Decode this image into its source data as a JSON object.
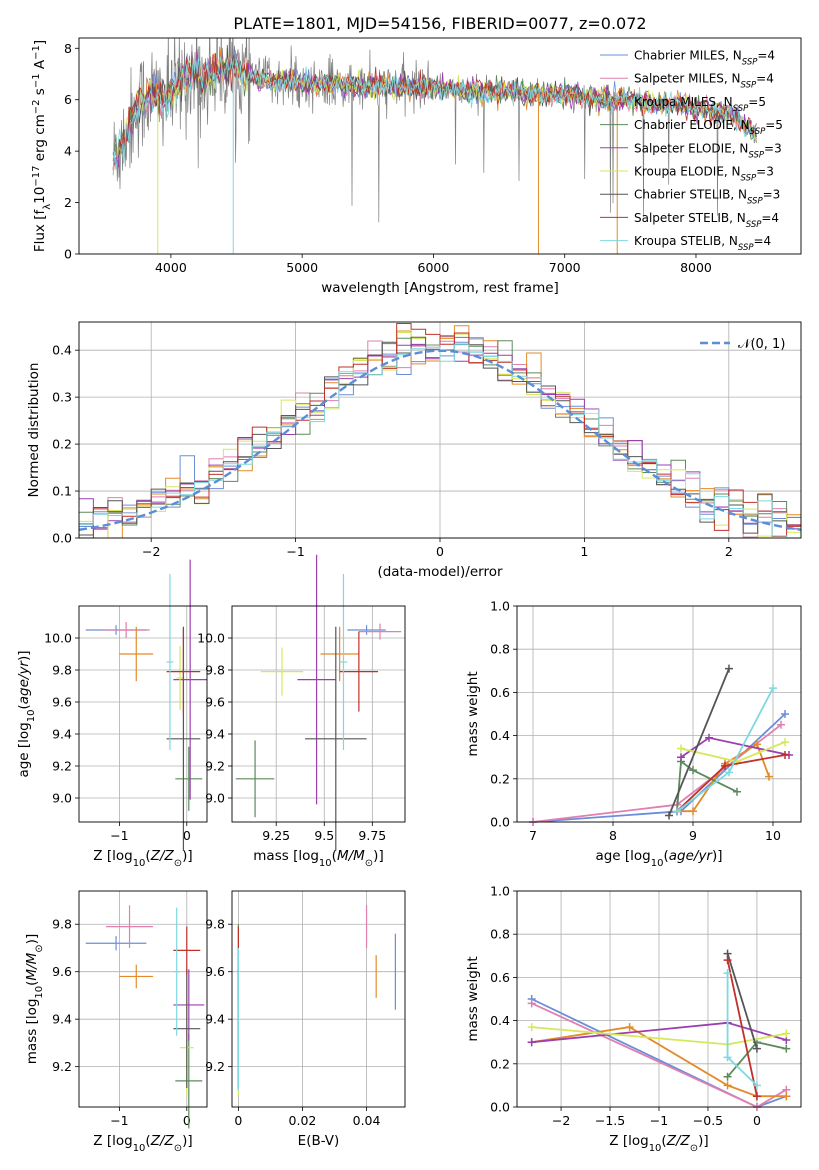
{
  "title": "PLATE=1801, MJD=54156, FIBERID=0077, z=0.072",
  "colors": {
    "Chabrier MILES": "#6a8fd8",
    "Salpeter MILES": "#e07fb0",
    "Kroupa MILES": "#e38a2a",
    "Chabrier ELODIE": "#5c8a5c",
    "Salpeter ELODIE": "#9b3fb0",
    "Kroupa ELODIE": "#d6e85a",
    "Chabrier STELIB": "#555555",
    "Salpeter STELIB": "#c0312b",
    "Kroupa STELIB": "#7fd8de",
    "data": "#808080",
    "normal": "#5b8ed6"
  },
  "chart_data": [
    {
      "type": "line",
      "xlabel": "wavelength [Angstrom, rest frame]",
      "ylabel": "Flux [f_λ 10^-17 erg cm^-2 s^-1 A^-1]",
      "xlim": [
        3300,
        8800
      ],
      "ylim": [
        0,
        8.4
      ],
      "xticks": [
        4000,
        5000,
        6000,
        7000,
        8000
      ],
      "yticks": [
        0,
        2,
        4,
        6,
        8
      ],
      "legend": {
        "position": "right",
        "entries": [
          "Chabrier MILES, N_SSP=4",
          "Salpeter MILES, N_SSP=4",
          "Kroupa MILES, N_SSP=5",
          "Chabrier ELODIE, N_SSP=5",
          "Salpeter ELODIE, N_SSP=3",
          "Kroupa ELODIE, N_SSP=3",
          "Chabrier STELIB, N_SSP=3",
          "Salpeter STELIB, N_SSP=4",
          "Kroupa STELIB, N_SSP=4"
        ]
      },
      "continuum": {
        "x": [
          3560,
          3650,
          3750,
          3850,
          3950,
          4050,
          4150,
          4250,
          4350,
          4450,
          4550,
          4700,
          4900,
          5100,
          5300,
          5500,
          5700,
          5900,
          6100,
          6300,
          6500,
          6700,
          6900,
          7100,
          7300,
          7500,
          7700,
          7900,
          8100,
          8300,
          8450
        ],
        "y": [
          3.6,
          4.6,
          5.8,
          6.3,
          6.0,
          6.5,
          7.2,
          6.8,
          7.2,
          7.3,
          7.0,
          6.8,
          6.7,
          6.6,
          6.6,
          6.5,
          6.5,
          6.5,
          6.4,
          6.35,
          6.3,
          6.25,
          6.2,
          6.15,
          6.0,
          6.0,
          5.85,
          5.8,
          5.6,
          5.4,
          4.6
        ]
      }
    },
    {
      "type": "line",
      "xlabel": "(data-model)/error",
      "ylabel": "Normed distribution",
      "xlim": [
        -2.5,
        2.5
      ],
      "ylim": [
        0,
        0.46
      ],
      "xticks": [
        -2,
        -1,
        0,
        1,
        2
      ],
      "yticks": [
        0.0,
        0.1,
        0.2,
        0.3,
        0.4
      ],
      "grid": true,
      "legend": {
        "position": "top-right",
        "entries": [
          "𝒩(0, 1)"
        ]
      },
      "series": [
        {
          "name": "Normal",
          "x_from": -2.5,
          "x_to": 2.5,
          "mean": 0,
          "sd": 1
        }
      ],
      "histogram_bin_width": 0.1
    },
    {
      "type": "scatter",
      "xlabel": "Z [log10(Z/Z⊙)]",
      "ylabel": "age [log10(age/yr)]",
      "xlim": [
        -1.6,
        0.3
      ],
      "ylim": [
        8.85,
        10.2
      ],
      "xticks": [
        -1,
        0
      ],
      "yticks": [
        9.0,
        9.2,
        9.4,
        9.6,
        9.8,
        10.0
      ],
      "grid": true,
      "points": [
        {
          "s": "Chabrier MILES",
          "x": -1.05,
          "y": 10.05,
          "xerr": 0.45,
          "yerr": 0.03
        },
        {
          "s": "Salpeter MILES",
          "x": -0.9,
          "y": 10.05,
          "xerr": 0.35,
          "yerr": 0.05
        },
        {
          "s": "Kroupa MILES",
          "x": -0.75,
          "y": 9.9,
          "xerr": 0.25,
          "yerr": 0.17
        },
        {
          "s": "Chabrier ELODIE",
          "x": 0.03,
          "y": 9.12,
          "xerr": 0.2,
          "yerr": 0.2
        },
        {
          "s": "Salpeter ELODIE",
          "x": 0.05,
          "y": 9.74,
          "xerr": 0.25,
          "yerr": 0.75
        },
        {
          "s": "Kroupa ELODIE",
          "x": -0.1,
          "y": 9.75,
          "xerr": 0.05,
          "yerr": 0.2
        },
        {
          "s": "Chabrier STELIB",
          "x": -0.05,
          "y": 9.37,
          "xerr": 0.25,
          "yerr": 0.7
        },
        {
          "s": "Salpeter STELIB",
          "x": -0.05,
          "y": 9.79,
          "xerr": 0.25,
          "yerr": 0.27
        },
        {
          "s": "Kroupa STELIB",
          "x": -0.25,
          "y": 9.85,
          "xerr": 0.05,
          "yerr": 0.55
        }
      ]
    },
    {
      "type": "scatter",
      "xlabel": "mass [log10(M/M⊙)]",
      "ylabel": "",
      "xlim": [
        9.02,
        9.92
      ],
      "ylim": [
        8.85,
        10.2
      ],
      "xticks": [
        9.25,
        9.5,
        9.75
      ],
      "yticks": [
        9.0,
        9.2,
        9.4,
        9.6,
        9.8,
        10.0
      ],
      "grid": true,
      "points": [
        {
          "s": "Chabrier MILES",
          "x": 9.72,
          "y": 10.05,
          "xerr": 0.1,
          "yerr": 0.03
        },
        {
          "s": "Salpeter MILES",
          "x": 9.79,
          "y": 10.04,
          "xerr": 0.11,
          "yerr": 0.05
        },
        {
          "s": "Kroupa MILES",
          "x": 9.58,
          "y": 9.9,
          "xerr": 0.1,
          "yerr": 0.17
        },
        {
          "s": "Chabrier ELODIE",
          "x": 9.14,
          "y": 9.12,
          "xerr": 0.1,
          "yerr": 0.24
        },
        {
          "s": "Salpeter ELODIE",
          "x": 9.46,
          "y": 9.74,
          "xerr": 0.1,
          "yerr": 0.78
        },
        {
          "s": "Kroupa ELODIE",
          "x": 9.28,
          "y": 9.79,
          "xerr": 0.11,
          "yerr": 0.15
        },
        {
          "s": "Chabrier STELIB",
          "x": 9.56,
          "y": 9.37,
          "xerr": 0.16,
          "yerr": 0.7
        },
        {
          "s": "Salpeter STELIB",
          "x": 9.68,
          "y": 9.79,
          "xerr": 0.1,
          "yerr": 0.25
        },
        {
          "s": "Kroupa STELIB",
          "x": 9.6,
          "y": 9.85,
          "xerr": 0.02,
          "yerr": 0.55
        }
      ]
    },
    {
      "type": "line",
      "xlabel": "age [log10(age/yr)]",
      "ylabel": "mass weight",
      "xlim": [
        6.8,
        10.35
      ],
      "ylim": [
        0,
        1
      ],
      "xticks": [
        7,
        8,
        9,
        10
      ],
      "yticks": [
        0.0,
        0.2,
        0.4,
        0.6,
        0.8,
        1.0
      ],
      "grid": true,
      "series": [
        {
          "name": "Chabrier MILES",
          "x": [
            7.0,
            8.85,
            10.15
          ],
          "y": [
            0.0,
            0.05,
            0.5
          ]
        },
        {
          "name": "Salpeter MILES",
          "x": [
            7.0,
            8.8,
            10.1
          ],
          "y": [
            0.0,
            0.08,
            0.45
          ]
        },
        {
          "name": "Kroupa MILES",
          "x": [
            8.8,
            9.0,
            9.4,
            9.8,
            9.95
          ],
          "y": [
            0.05,
            0.05,
            0.27,
            0.36,
            0.21
          ]
        },
        {
          "name": "Chabrier ELODIE",
          "x": [
            8.8,
            8.85,
            9.0,
            9.55
          ],
          "y": [
            0.05,
            0.28,
            0.24,
            0.14
          ]
        },
        {
          "name": "Salpeter ELODIE",
          "x": [
            8.85,
            9.2,
            10.2
          ],
          "y": [
            0.3,
            0.39,
            0.31
          ]
        },
        {
          "name": "Kroupa ELODIE",
          "x": [
            8.85,
            9.55,
            10.15
          ],
          "y": [
            0.34,
            0.28,
            0.37
          ]
        },
        {
          "name": "Chabrier STELIB",
          "x": [
            8.7,
            9.45
          ],
          "y": [
            0.03,
            0.71
          ]
        },
        {
          "name": "Salpeter STELIB",
          "x": [
            8.8,
            9.4,
            10.15
          ],
          "y": [
            0.05,
            0.26,
            0.31
          ]
        },
        {
          "name": "Kroupa STELIB",
          "x": [
            8.8,
            9.45,
            10.0
          ],
          "y": [
            0.05,
            0.23,
            0.62
          ]
        }
      ]
    },
    {
      "type": "scatter",
      "xlabel": "Z [log10(Z/Z⊙)]",
      "ylabel": "mass [log10(M/M⊙)]",
      "xlim": [
        -1.6,
        0.3
      ],
      "ylim": [
        9.03,
        9.94
      ],
      "xticks": [
        -1,
        0
      ],
      "yticks": [
        9.2,
        9.4,
        9.6,
        9.8
      ],
      "grid": true,
      "points": [
        {
          "s": "Chabrier MILES",
          "x": -1.05,
          "y": 9.72,
          "xerr": 0.45,
          "yerr": 0.03
        },
        {
          "s": "Salpeter MILES",
          "x": -0.85,
          "y": 9.79,
          "xerr": 0.35,
          "yerr": 0.09
        },
        {
          "s": "Kroupa MILES",
          "x": -0.75,
          "y": 9.58,
          "xerr": 0.25,
          "yerr": 0.05
        },
        {
          "s": "Chabrier ELODIE",
          "x": 0.03,
          "y": 9.14,
          "xerr": 0.2,
          "yerr": 0.2
        },
        {
          "s": "Salpeter ELODIE",
          "x": 0.03,
          "y": 9.46,
          "xerr": 0.23,
          "yerr": 0.15
        },
        {
          "s": "Kroupa ELODIE",
          "x": 0.0,
          "y": 9.28,
          "xerr": 0.1,
          "yerr": 0.2
        },
        {
          "s": "Chabrier STELIB",
          "x": 0.0,
          "y": 9.36,
          "xerr": 0.2,
          "yerr": 0.25
        },
        {
          "s": "Salpeter STELIB",
          "x": 0.0,
          "y": 9.69,
          "xerr": 0.2,
          "yerr": 0.1
        },
        {
          "s": "Kroupa STELIB",
          "x": -0.15,
          "y": 9.6,
          "xerr": 0.05,
          "yerr": 0.27
        }
      ]
    },
    {
      "type": "scatter",
      "xlabel": "E(B-V)",
      "ylabel": "",
      "xlim": [
        -0.002,
        0.052
      ],
      "ylim": [
        9.03,
        9.94
      ],
      "xticks": [
        0.0,
        0.02,
        0.04
      ],
      "yticks": [
        9.2,
        9.4,
        9.6,
        9.8
      ],
      "grid": true,
      "points": [
        {
          "s": "Chabrier MILES",
          "x": 0.049,
          "y": 9.6,
          "xerr": 0.0,
          "yerr": 0.16
        },
        {
          "s": "Salpeter MILES",
          "x": 0.04,
          "y": 9.79,
          "xerr": 0.0,
          "yerr": 0.09
        },
        {
          "s": "Kroupa MILES",
          "x": 0.043,
          "y": 9.58,
          "xerr": 0.0,
          "yerr": 0.09
        },
        {
          "s": "Chabrier ELODIE",
          "x": 0.0,
          "y": 9.45,
          "xerr": 0.0,
          "yerr": 0.35
        },
        {
          "s": "Salpeter ELODIE",
          "x": 0.0,
          "y": 9.46,
          "xerr": 0.0,
          "yerr": 0.15
        },
        {
          "s": "Kroupa ELODIE",
          "x": 0.0,
          "y": 9.28,
          "xerr": 0.0,
          "yerr": 0.2
        },
        {
          "s": "Chabrier STELIB",
          "x": 0.0,
          "y": 9.36,
          "xerr": 0.0,
          "yerr": 0.25
        },
        {
          "s": "Salpeter STELIB",
          "x": 0.0,
          "y": 9.69,
          "xerr": 0.0,
          "yerr": 0.1
        },
        {
          "s": "Kroupa STELIB",
          "x": 0.0,
          "y": 9.4,
          "xerr": 0.0,
          "yerr": 0.3
        }
      ]
    },
    {
      "type": "line",
      "xlabel": "Z [log10(Z/Z⊙)]",
      "ylabel": "mass weight",
      "xlim": [
        -2.45,
        0.45
      ],
      "ylim": [
        0,
        1
      ],
      "xticks": [
        -2.0,
        -1.5,
        -1.0,
        -0.5,
        0.0
      ],
      "yticks": [
        0.0,
        0.2,
        0.4,
        0.6,
        0.8,
        1.0
      ],
      "grid": true,
      "series": [
        {
          "name": "Chabrier MILES",
          "x": [
            -2.3,
            0.0,
            0.3
          ],
          "y": [
            0.5,
            0.0,
            0.05
          ]
        },
        {
          "name": "Salpeter MILES",
          "x": [
            -2.3,
            0.0,
            0.3
          ],
          "y": [
            0.48,
            0.0,
            0.08
          ]
        },
        {
          "name": "Kroupa MILES",
          "x": [
            -2.3,
            -1.3,
            -0.3,
            0.0,
            0.3
          ],
          "y": [
            0.3,
            0.37,
            0.1,
            0.05,
            0.05
          ]
        },
        {
          "name": "Chabrier ELODIE",
          "x": [
            -0.3,
            0.0,
            0.3
          ],
          "y": [
            0.14,
            0.3,
            0.27
          ]
        },
        {
          "name": "Salpeter ELODIE",
          "x": [
            -2.3,
            -0.3,
            0.3
          ],
          "y": [
            0.3,
            0.39,
            0.31
          ]
        },
        {
          "name": "Kroupa ELODIE",
          "x": [
            -2.3,
            -0.3,
            0.3
          ],
          "y": [
            0.37,
            0.29,
            0.34
          ]
        },
        {
          "name": "Chabrier STELIB",
          "x": [
            -0.3,
            0.0
          ],
          "y": [
            0.71,
            0.27
          ]
        },
        {
          "name": "Salpeter STELIB",
          "x": [
            -0.3,
            0.0
          ],
          "y": [
            0.68,
            0.05
          ]
        },
        {
          "name": "Kroupa STELIB",
          "x": [
            -0.3,
            -0.3,
            0.0
          ],
          "y": [
            0.62,
            0.23,
            0.1
          ]
        }
      ]
    }
  ]
}
